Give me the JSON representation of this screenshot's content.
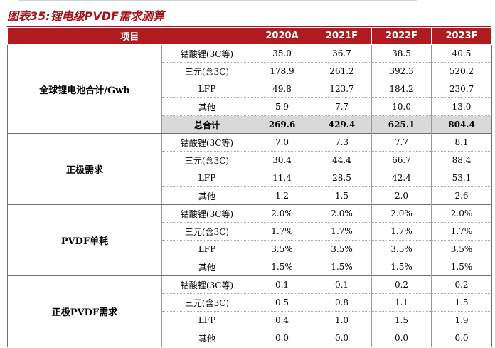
{
  "title": "图表35:锂电级PVDF需求测算",
  "header": [
    "项目",
    "2020A",
    "2021F",
    "2022F",
    "2023F"
  ],
  "groups": [
    {
      "name": "全球锂电池合计/Gwh",
      "rows": [
        {
          "label": "钴酸锂(3C等)",
          "values": [
            "35.0",
            "36.7",
            "38.5",
            "40.5"
          ]
        },
        {
          "label": "三元(含3C)",
          "values": [
            "178.9",
            "261.2",
            "392.3",
            "520.2"
          ]
        },
        {
          "label": "LFP",
          "values": [
            "49.8",
            "123.7",
            "184.2",
            "230.7"
          ]
        },
        {
          "label": "其他",
          "values": [
            "5.9",
            "7.7",
            "10.0",
            "13.0"
          ]
        },
        {
          "label": "总合计",
          "values": [
            "269.6",
            "429.4",
            "625.1",
            "804.4"
          ],
          "total": true
        }
      ]
    },
    {
      "name": "正极需求",
      "rows": [
        {
          "label": "钴酸锂(3C等)",
          "values": [
            "7.0",
            "7.3",
            "7.7",
            "8.1"
          ]
        },
        {
          "label": "三元(含3C)",
          "values": [
            "30.4",
            "44.4",
            "66.7",
            "88.4"
          ]
        },
        {
          "label": "LFP",
          "values": [
            "11.4",
            "28.5",
            "42.4",
            "53.1"
          ]
        },
        {
          "label": "其他",
          "values": [
            "1.2",
            "1.5",
            "2.0",
            "2.6"
          ]
        }
      ]
    },
    {
      "name": "PVDF单耗",
      "rows": [
        {
          "label": "钴酸锂(3C等)",
          "values": [
            "2.0%",
            "2.0%",
            "2.0%",
            "2.0%"
          ]
        },
        {
          "label": "三元(含3C)",
          "values": [
            "1.7%",
            "1.7%",
            "1.7%",
            "1.7%"
          ]
        },
        {
          "label": "LFP",
          "values": [
            "3.5%",
            "3.5%",
            "3.5%",
            "3.5%"
          ]
        },
        {
          "label": "其他",
          "values": [
            "1.5%",
            "1.5%",
            "1.5%",
            "1.5%"
          ]
        }
      ]
    },
    {
      "name": "正极PVDF需求",
      "rows": [
        {
          "label": "钴酸锂(3C等)",
          "values": [
            "0.1",
            "0.1",
            "0.2",
            "0.2"
          ]
        },
        {
          "label": "三元(含3C)",
          "values": [
            "0.5",
            "0.8",
            "1.1",
            "1.5"
          ]
        },
        {
          "label": "LFP",
          "values": [
            "0.4",
            "1.0",
            "1.5",
            "1.9"
          ]
        },
        {
          "label": "其他",
          "values": [
            "0.0",
            "0.0",
            "0.0",
            "0.0"
          ]
        }
      ]
    }
  ]
}
